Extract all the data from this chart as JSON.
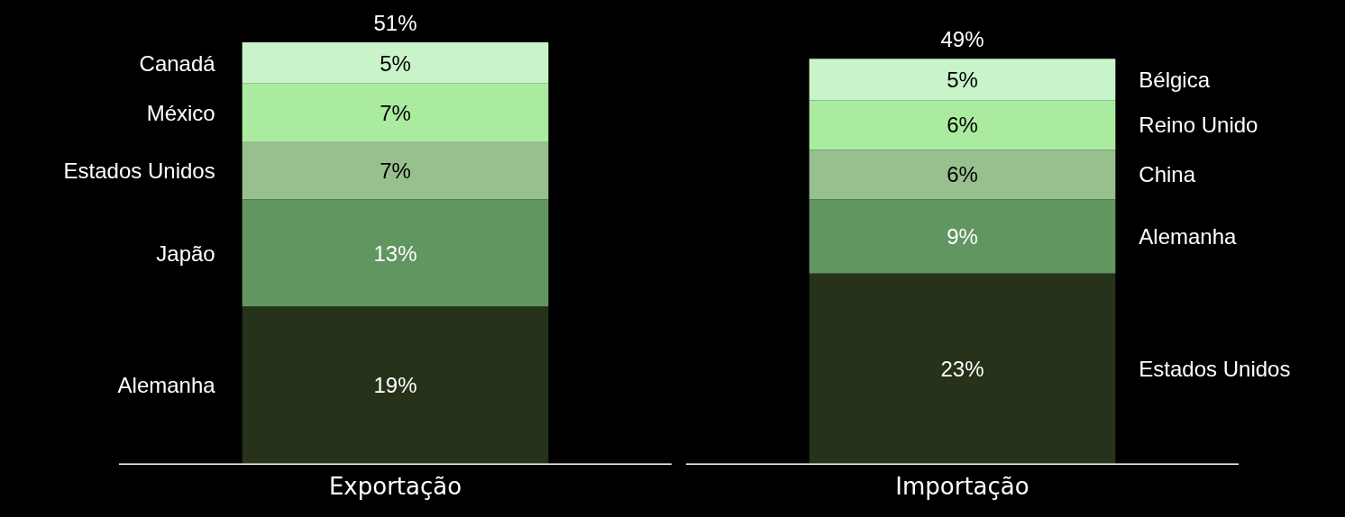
{
  "chart_data": {
    "type": "bar",
    "stacked": true,
    "categories": [
      "Exportação",
      "Importação"
    ],
    "tick_labels": "x",
    "totals": [
      "51%",
      "49%"
    ],
    "series": [
      {
        "color": "#263219",
        "values": [
          19,
          23
        ],
        "value_labels": [
          "19%",
          "23%"
        ]
      },
      {
        "color": "#629661",
        "values": [
          13,
          9
        ],
        "value_labels": [
          "13%",
          "9%"
        ]
      },
      {
        "color": "#98c08e",
        "values": [
          7,
          6
        ],
        "value_labels": [
          "7%",
          "6%"
        ]
      },
      {
        "color": "#abeba0",
        "values": [
          7,
          6
        ],
        "value_labels": [
          "7%",
          "6%"
        ]
      },
      {
        "color": "#c9f3c9",
        "values": [
          5,
          5
        ],
        "value_labels": [
          "5%",
          "5%"
        ]
      }
    ],
    "annotations": [
      "Alemanha",
      "Japão",
      "Estados Unidos",
      "México",
      "Canadá",
      "Estados Unidos",
      "Alemanha",
      "China",
      "Reino Unido",
      "Bélgica"
    ]
  }
}
